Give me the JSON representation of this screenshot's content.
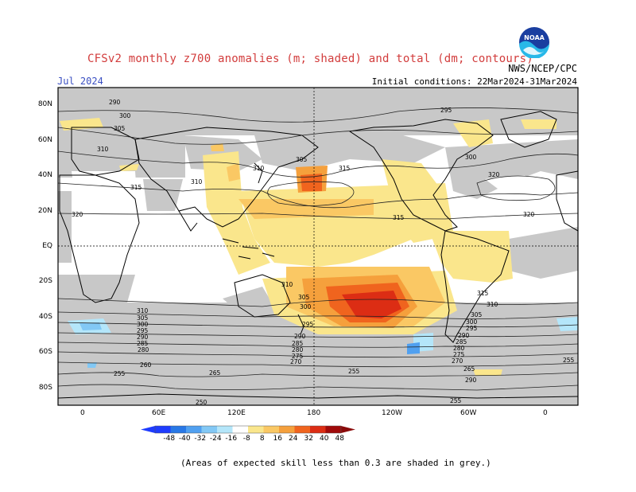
{
  "header": {
    "title": "CFSv2 monthly z700 anomalies (m; shaded) and total (dm; contours)",
    "valid_month": "Jul 2024",
    "initial_conditions": "Initial conditions: 22Mar2024-31Mar2024",
    "agency": "NWS/NCEP/CPC",
    "logo_text": "NOAA"
  },
  "map": {
    "lat_ticks": [
      "80N",
      "60N",
      "40N",
      "20N",
      "EQ",
      "20S",
      "40S",
      "60S",
      "80S"
    ],
    "lon_ticks": [
      "0",
      "60E",
      "120E",
      "180",
      "120W",
      "60W",
      "0"
    ],
    "contour_labels": [
      "290",
      "300",
      "305",
      "310",
      "315",
      "320",
      "310",
      "315",
      "305",
      "300",
      "295",
      "290",
      "285",
      "280",
      "275",
      "270",
      "265",
      "260",
      "255",
      "250"
    ],
    "colors": {
      "ocean_land_bg": "#ffffff",
      "low_skill_grey": "#c8c8c8",
      "coast": "#000000"
    }
  },
  "legend": {
    "values": [
      "-48",
      "-40",
      "-32",
      "-24",
      "-16",
      "-8",
      "8",
      "16",
      "24",
      "32",
      "40",
      "48"
    ],
    "colors": [
      "#1e3cff",
      "#2878e6",
      "#50a0f0",
      "#82c8f5",
      "#b4e6fa",
      "#ffffff",
      "#fae68c",
      "#fac864",
      "#f5a03c",
      "#f0641e",
      "#dc2d14",
      "#a00a0a"
    ]
  },
  "note": "(Areas of expected skill less than 0.3 are shaded in grey.)"
}
